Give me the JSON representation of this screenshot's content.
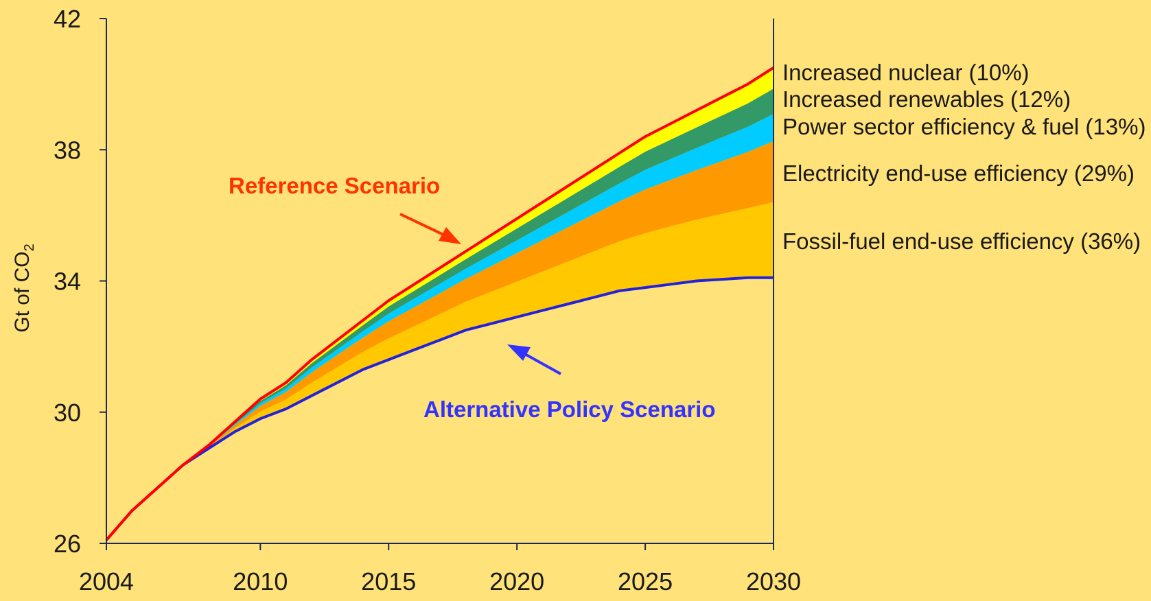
{
  "chart_data": {
    "type": "area",
    "title": "",
    "xlabel": "",
    "ylabel": "Gt of CO",
    "ylabel_subscript": "2",
    "xlim": [
      2004,
      2030
    ],
    "ylim": [
      26,
      42
    ],
    "x_ticks": [
      2004,
      2010,
      2015,
      2020,
      2025,
      2030
    ],
    "y_ticks": [
      26,
      30,
      34,
      38,
      42
    ],
    "grid": false,
    "x": [
      2004,
      2005,
      2006,
      2007,
      2008,
      2009,
      2010,
      2011,
      2012,
      2013,
      2014,
      2015,
      2016,
      2017,
      2018,
      2019,
      2020,
      2021,
      2022,
      2023,
      2024,
      2025,
      2026,
      2027,
      2028,
      2029,
      2030
    ],
    "reference": [
      26.1,
      27.0,
      27.7,
      28.4,
      29.0,
      29.7,
      30.4,
      30.9,
      31.6,
      32.2,
      32.8,
      33.4,
      33.9,
      34.4,
      34.9,
      35.4,
      35.9,
      36.4,
      36.9,
      37.4,
      37.9,
      38.4,
      38.8,
      39.2,
      39.6,
      40.0,
      40.5
    ],
    "alternative": [
      26.1,
      27.0,
      27.7,
      28.4,
      28.9,
      29.4,
      29.8,
      30.1,
      30.5,
      30.9,
      31.3,
      31.6,
      31.9,
      32.2,
      32.5,
      32.7,
      32.9,
      33.1,
      33.3,
      33.5,
      33.7,
      33.8,
      33.9,
      34.0,
      34.05,
      34.1,
      34.1
    ],
    "series": [
      {
        "name": "Fossil-fuel end-use efficiency (36%)",
        "color": "#FFC800",
        "share": 0.36
      },
      {
        "name": "Electricity end-use efficiency (29%)",
        "color": "#FF9900",
        "share": 0.29
      },
      {
        "name": "Power sector efficiency & fuel (13%)",
        "color": "#00CCFF",
        "share": 0.13
      },
      {
        "name": "Increased renewables (12%)",
        "color": "#339966",
        "share": 0.12
      },
      {
        "name": "Increased nuclear (10%)",
        "color": "#FFFF00",
        "share": 0.1
      }
    ],
    "annotations": [
      {
        "text": "Reference Scenario",
        "color": "#FF3300"
      },
      {
        "text": "Alternative Policy Scenario",
        "color": "#3333FF"
      }
    ],
    "line_colors": {
      "reference": "#FF0000",
      "alternative": "#2222DD",
      "axis": "#1a2a5a"
    }
  }
}
